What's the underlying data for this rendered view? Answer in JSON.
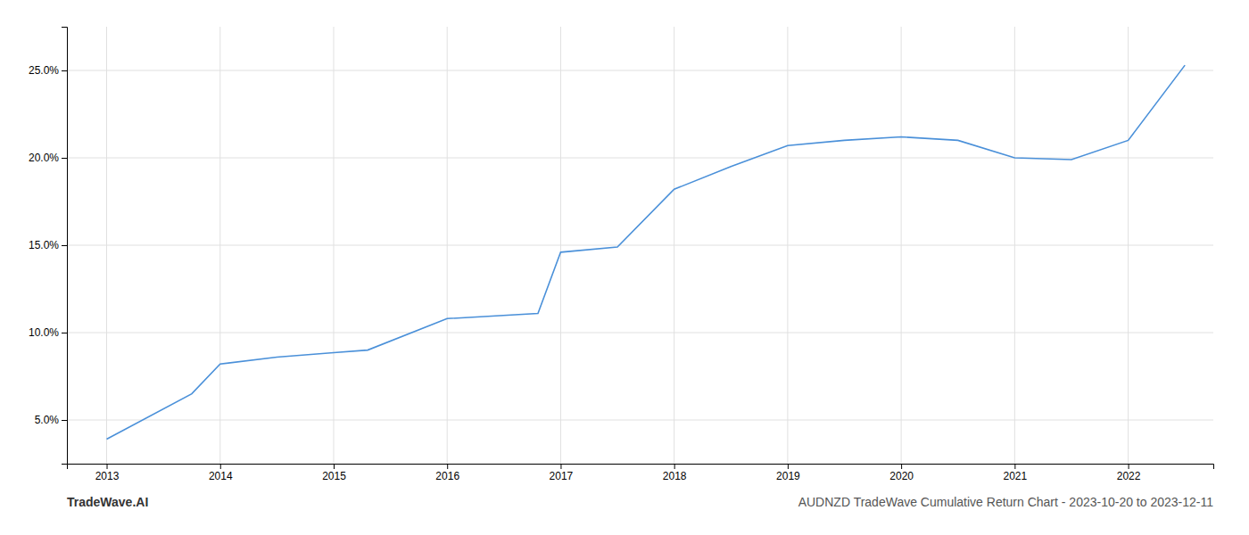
{
  "chart_data": {
    "type": "line",
    "title": "AUDNZD TradeWave Cumulative Return Chart - 2023-10-20 to 2023-12-11",
    "annotations": [
      "TradeWave.AI"
    ],
    "x": [
      2013.0,
      2013.75,
      2014.0,
      2014.5,
      2015.0,
      2015.3,
      2016.0,
      2016.8,
      2017.0,
      2017.5,
      2018.0,
      2018.5,
      2019.0,
      2019.5,
      2020.0,
      2020.5,
      2021.0,
      2021.5,
      2022.0,
      2022.5
    ],
    "values": [
      3.9,
      6.5,
      8.2,
      8.6,
      8.85,
      9.0,
      10.8,
      11.1,
      14.6,
      14.9,
      18.2,
      19.5,
      20.7,
      21.0,
      21.2,
      21.0,
      20.0,
      19.9,
      21.0,
      25.3
    ],
    "color": "#4a90d9",
    "xlim": [
      2012.65,
      2022.75
    ],
    "ylim": [
      2.5,
      27.5
    ],
    "xticks": [
      2013,
      2014,
      2015,
      2016,
      2017,
      2018,
      2019,
      2020,
      2021,
      2022
    ],
    "yticks": [
      {
        "value": 5.0,
        "label": "5.0%"
      },
      {
        "value": 10.0,
        "label": "10.0%"
      },
      {
        "value": 15.0,
        "label": "15.0%"
      },
      {
        "value": 20.0,
        "label": "20.0%"
      },
      {
        "value": 25.0,
        "label": "25.0%"
      }
    ],
    "grid": true
  }
}
